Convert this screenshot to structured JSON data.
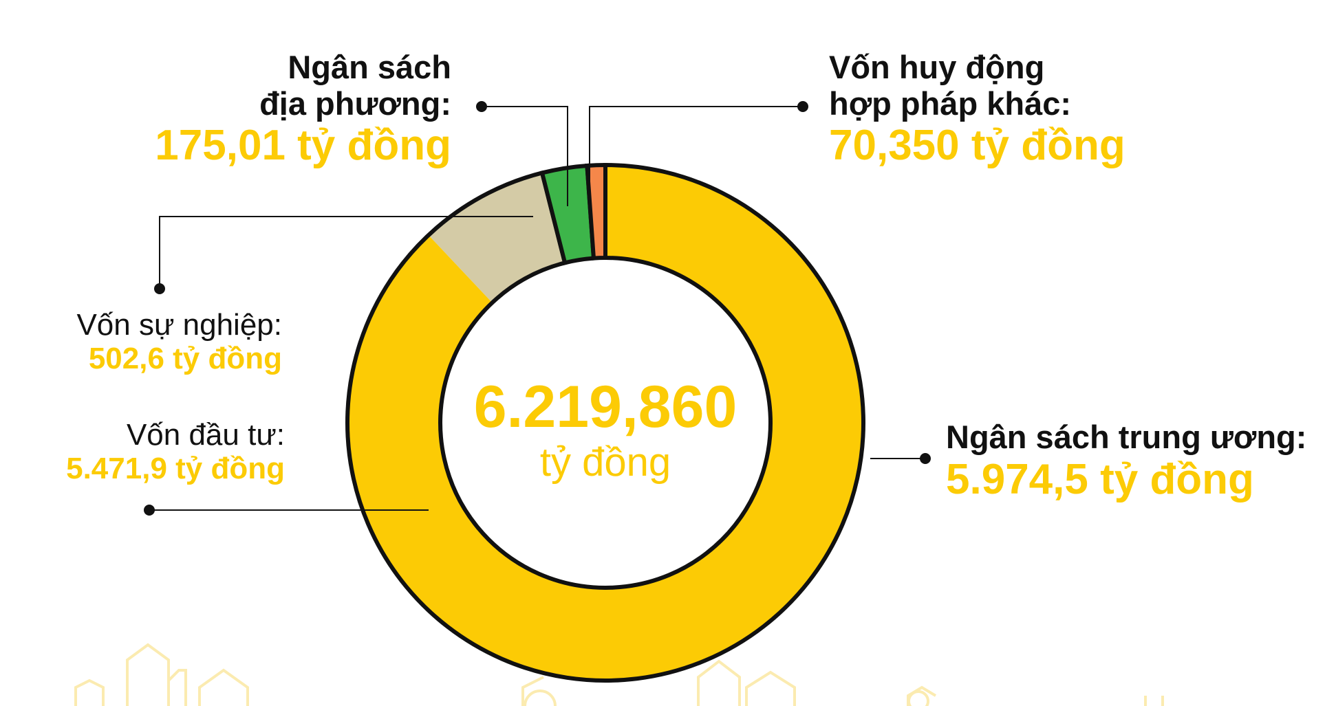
{
  "chart_data": {
    "type": "donut",
    "total": {
      "value": "6.219,860",
      "unit": "tỷ đồng"
    },
    "slices": [
      {
        "name": "Ngân sách trung ương:",
        "value_label": "5.974,5 tỷ đồng",
        "value": 5974.5,
        "color": "#FCCB05"
      },
      {
        "name": "Vốn huy động hợp pháp khác:",
        "value_label": "70,350 tỷ đồng",
        "value": 70.35,
        "color": "#F5874A"
      },
      {
        "name": "Ngân sách địa phương:",
        "value_label": "175,01 tỷ đồng",
        "value": 175.01,
        "color": "#3DB54A"
      }
    ],
    "breakdown": [
      {
        "name": "Vốn sự nghiệp:",
        "value_label": "502,6  tỷ đồng",
        "value": 502.6,
        "color": "#D4CBA6"
      },
      {
        "name": "Vốn đầu tư:",
        "value_label": "5.471,9  tỷ đồng",
        "value": 5471.9,
        "color": "#FCCB05"
      }
    ]
  },
  "labels": {
    "trung_uong": {
      "name": "Ngân sách trung ương:",
      "value": "5.974,5 tỷ đồng"
    },
    "huy_dong": {
      "name_line1": "Vốn huy động",
      "name_line2": "hợp pháp khác:",
      "value": "70,350 tỷ đồng"
    },
    "dia_phuong": {
      "name_line1": "Ngân sách",
      "name_line2": "địa phương:",
      "value": "175,01 tỷ đồng"
    },
    "su_nghiep": {
      "name": "Vốn sự nghiệp:",
      "value": "502,6  tỷ đồng"
    },
    "dau_tu": {
      "name": "Vốn đầu tư:",
      "value": "5.471,9  tỷ đồng"
    }
  },
  "colors": {
    "accent": "#FCCB05",
    "orange": "#F5874A",
    "green": "#3DB54A",
    "beige": "#D4CBA6",
    "outline": "#111111",
    "decor": "#FBEBB0"
  }
}
